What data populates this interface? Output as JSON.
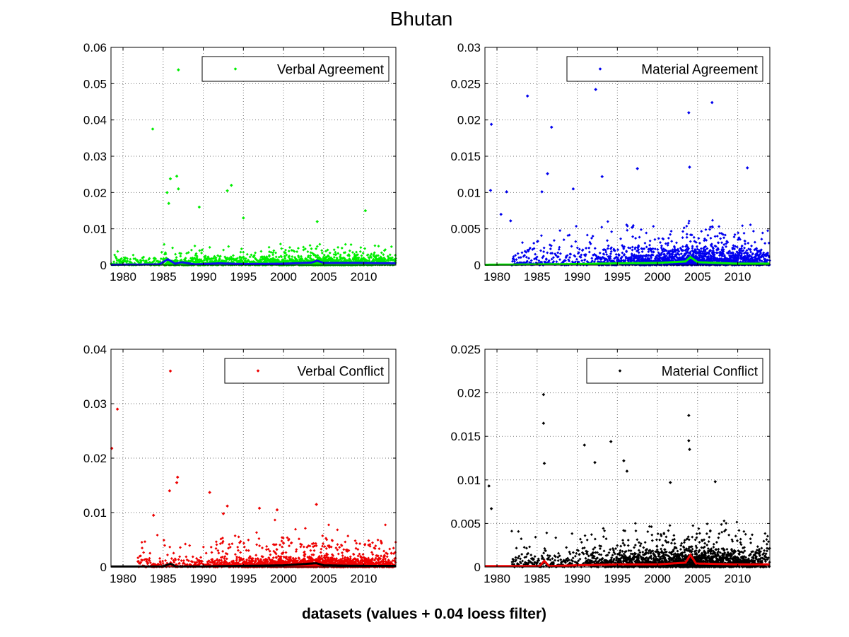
{
  "figure": {
    "title": "Bhutan",
    "xlabel": "datasets (values + 0.04 loess filter)"
  },
  "chart_data": [
    {
      "type": "scatter",
      "legend": "Verbal Agreement",
      "legend_position": "top-right",
      "grid": true,
      "xlim": [
        1978.5,
        2014
      ],
      "ylim": [
        0,
        0.06
      ],
      "xticks": [
        1980,
        1985,
        1990,
        1995,
        2000,
        2005,
        2010
      ],
      "yticks": [
        0,
        0.01,
        0.02,
        0.03,
        0.04,
        0.05,
        0.06
      ],
      "ytick_labels": [
        "0",
        "0.01",
        "0.02",
        "0.03",
        "0.04",
        "0.05",
        "0.06"
      ],
      "point_color": "#00ee00",
      "trend_color": "#1010ee",
      "highlight_points": [
        [
          1983.7,
          0.0375
        ],
        [
          1986.9,
          0.0538
        ],
        [
          1985.9,
          0.0238
        ],
        [
          1986.7,
          0.0245
        ],
        [
          1986.9,
          0.021
        ],
        [
          1993.0,
          0.0205
        ],
        [
          1993.5,
          0.022
        ],
        [
          1989.5,
          0.016
        ],
        [
          2010.2,
          0.015
        ],
        [
          2004.2,
          0.012
        ],
        [
          1995.0,
          0.013
        ],
        [
          1985.5,
          0.02
        ],
        [
          1985.7,
          0.017
        ]
      ],
      "cluster": {
        "rate": 0.0016,
        "spread": 0.0035,
        "density": [
          [
            1978.5,
            10
          ],
          [
            1985,
            30
          ],
          [
            1986,
            40
          ],
          [
            1990,
            30
          ],
          [
            1995,
            40
          ],
          [
            2000,
            60
          ],
          [
            2005,
            80
          ],
          [
            2010,
            70
          ],
          [
            2014,
            40
          ]
        ]
      },
      "trend": [
        [
          1978.5,
          0.0001
        ],
        [
          1984.5,
          0.0002
        ],
        [
          1985.6,
          0.0016
        ],
        [
          1986.5,
          0.0004
        ],
        [
          1987.3,
          0.0008
        ],
        [
          1989,
          0.0002
        ],
        [
          1992,
          0.0005
        ],
        [
          1995,
          0.0003
        ],
        [
          2000,
          0.0004
        ],
        [
          2003.5,
          0.0007
        ],
        [
          2004.2,
          0.0012
        ],
        [
          2005,
          0.0006
        ],
        [
          2010,
          0.0006
        ],
        [
          2014,
          0.0005
        ]
      ]
    },
    {
      "type": "scatter",
      "legend": "Material Agreement",
      "legend_position": "top-right",
      "grid": true,
      "xlim": [
        1978.5,
        2014
      ],
      "ylim": [
        0,
        0.03
      ],
      "xticks": [
        1980,
        1985,
        1990,
        1995,
        2000,
        2005,
        2010
      ],
      "yticks": [
        0,
        0.005,
        0.01,
        0.015,
        0.02,
        0.025,
        0.03
      ],
      "ytick_labels": [
        "0",
        "0.005",
        "0.01",
        "0.015",
        "0.02",
        "0.025",
        "0.03"
      ],
      "point_color": "#0000ee",
      "trend_color": "#00ee00",
      "highlight_points": [
        [
          1979.3,
          0.0194
        ],
        [
          1983.8,
          0.0233
        ],
        [
          1986.8,
          0.019
        ],
        [
          1992.3,
          0.0242
        ],
        [
          2003.9,
          0.021
        ],
        [
          2006.8,
          0.0224
        ],
        [
          2011.2,
          0.0134
        ],
        [
          1979.2,
          0.0103
        ],
        [
          1980.5,
          0.007
        ],
        [
          1981.2,
          0.0101
        ],
        [
          1981.7,
          0.0061
        ],
        [
          1985.6,
          0.0101
        ],
        [
          1986.3,
          0.0126
        ],
        [
          1989.5,
          0.0105
        ],
        [
          1993.1,
          0.0122
        ],
        [
          1997.5,
          0.0133
        ],
        [
          2004.0,
          0.0135
        ]
      ],
      "cluster": {
        "rate": 0.0016,
        "spread": 0.0038,
        "density": [
          [
            1978.5,
            5
          ],
          [
            1985,
            15
          ],
          [
            1990,
            20
          ],
          [
            1995,
            40
          ],
          [
            2000,
            70
          ],
          [
            2005,
            110
          ],
          [
            2010,
            80
          ],
          [
            2014,
            40
          ]
        ]
      },
      "trend": [
        [
          1978.5,
          5e-05
        ],
        [
          1985,
          0.0001
        ],
        [
          1990,
          0.00015
        ],
        [
          1995,
          0.00025
        ],
        [
          2000,
          0.0003
        ],
        [
          2003.5,
          0.0005
        ],
        [
          2004.1,
          0.0011
        ],
        [
          2005,
          0.0004
        ],
        [
          2010,
          0.0002
        ],
        [
          2014,
          0.0002
        ]
      ]
    },
    {
      "type": "scatter",
      "legend": "Verbal Conflict",
      "legend_position": "top-right",
      "grid": true,
      "xlim": [
        1978.5,
        2014
      ],
      "ylim": [
        0,
        0.04
      ],
      "xticks": [
        1980,
        1985,
        1990,
        1995,
        2000,
        2005,
        2010
      ],
      "yticks": [
        0,
        0.01,
        0.02,
        0.03,
        0.04
      ],
      "ytick_labels": [
        "0",
        "0.01",
        "0.02",
        "0.03",
        "0.04"
      ],
      "point_color": "#ee0000",
      "trend_color": "#000000",
      "highlight_points": [
        [
          1978.6,
          0.0218
        ],
        [
          1979.3,
          0.029
        ],
        [
          1985.9,
          0.036
        ],
        [
          1986.8,
          0.0165
        ],
        [
          1986.7,
          0.0155
        ],
        [
          1985.8,
          0.014
        ],
        [
          1983.8,
          0.0095
        ],
        [
          1990.8,
          0.0137
        ],
        [
          2004.1,
          0.0115
        ],
        [
          1997.0,
          0.0108
        ],
        [
          1999.2,
          0.0105
        ],
        [
          1993.0,
          0.0112
        ],
        [
          1992.5,
          0.0098
        ]
      ],
      "cluster": {
        "rate": 0.0012,
        "spread": 0.0045,
        "density": [
          [
            1978.5,
            5
          ],
          [
            1985,
            15
          ],
          [
            1990,
            25
          ],
          [
            1995,
            50
          ],
          [
            2000,
            80
          ],
          [
            2005,
            100
          ],
          [
            2010,
            80
          ],
          [
            2014,
            40
          ]
        ]
      },
      "trend": [
        [
          1978.5,
          0.0001
        ],
        [
          1985,
          0.0001
        ],
        [
          1985.9,
          0.0006
        ],
        [
          1986.6,
          0.0001
        ],
        [
          1990,
          0.0001
        ],
        [
          1995,
          0.0002
        ],
        [
          2000,
          0.0003
        ],
        [
          2004.1,
          0.0007
        ],
        [
          2005,
          0.0003
        ],
        [
          2010,
          0.0002
        ],
        [
          2014,
          0.0002
        ]
      ]
    },
    {
      "type": "scatter",
      "legend": "Material Conflict",
      "legend_position": "top-right",
      "grid": true,
      "xlim": [
        1978.5,
        2014
      ],
      "ylim": [
        0,
        0.025
      ],
      "xticks": [
        1980,
        1985,
        1990,
        1995,
        2000,
        2005,
        2010
      ],
      "yticks": [
        0,
        0.005,
        0.01,
        0.015,
        0.02,
        0.025
      ],
      "ytick_labels": [
        "0",
        "0.005",
        "0.01",
        "0.015",
        "0.02",
        "0.025"
      ],
      "point_color": "#000000",
      "trend_color": "#ee0000",
      "highlight_points": [
        [
          1985.8,
          0.0198
        ],
        [
          1985.8,
          0.0165
        ],
        [
          1985.9,
          0.0119
        ],
        [
          2003.9,
          0.0174
        ],
        [
          2003.9,
          0.0145
        ],
        [
          2004.0,
          0.0135
        ],
        [
          1990.9,
          0.014
        ],
        [
          1994.2,
          0.0144
        ],
        [
          1992.2,
          0.012
        ],
        [
          1995.8,
          0.0122
        ],
        [
          1979.0,
          0.0093
        ],
        [
          1979.3,
          0.0067
        ],
        [
          2007.2,
          0.0098
        ],
        [
          2001.6,
          0.0097
        ],
        [
          1996.2,
          0.011
        ]
      ],
      "cluster": {
        "rate": 0.0014,
        "spread": 0.0035,
        "density": [
          [
            1978.5,
            5
          ],
          [
            1985,
            15
          ],
          [
            1990,
            25
          ],
          [
            1995,
            50
          ],
          [
            2000,
            80
          ],
          [
            2005,
            110
          ],
          [
            2010,
            80
          ],
          [
            2014,
            40
          ]
        ]
      },
      "trend": [
        [
          1978.5,
          0.0001
        ],
        [
          1985.3,
          0.0001
        ],
        [
          1985.9,
          0.0007
        ],
        [
          1986.5,
          0.0001
        ],
        [
          1990,
          0.0002
        ],
        [
          1995,
          0.0003
        ],
        [
          2000,
          0.0003
        ],
        [
          2003.5,
          0.0005
        ],
        [
          2004.1,
          0.0014
        ],
        [
          2004.8,
          0.0004
        ],
        [
          2010,
          0.0003
        ],
        [
          2014,
          0.0003
        ]
      ]
    }
  ]
}
